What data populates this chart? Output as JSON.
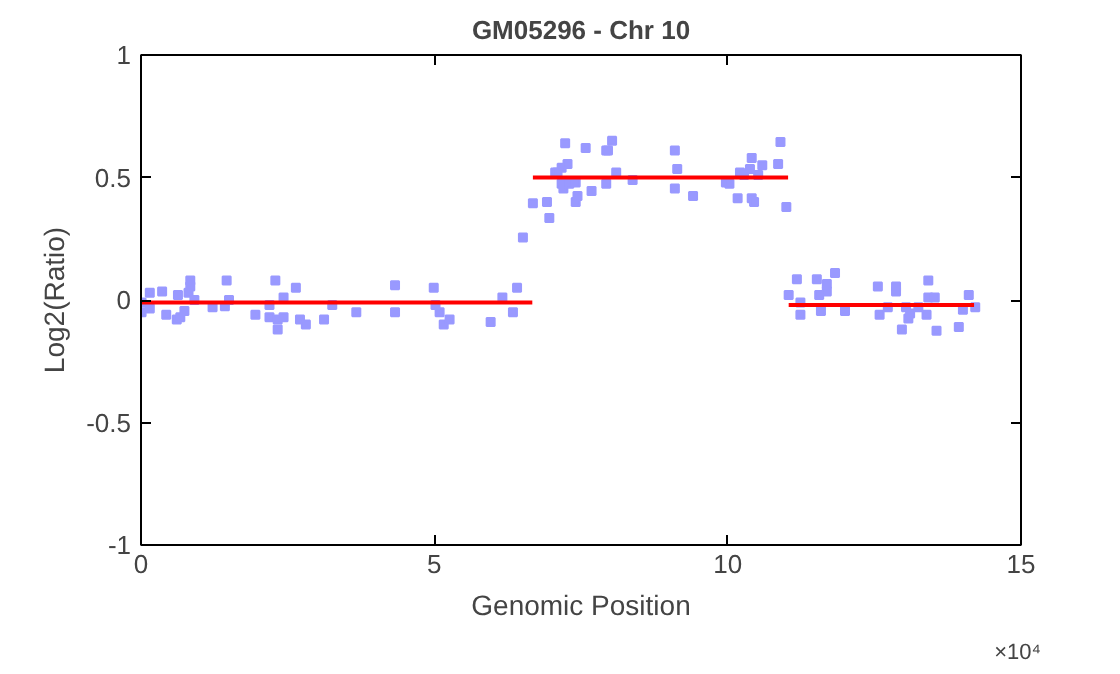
{
  "chart_data": {
    "type": "scatter",
    "title": "GM05296 - Chr 10",
    "xlabel": "Genomic Position",
    "ylabel": "Log2(Ratio)",
    "annotations": [
      "×10⁴"
    ],
    "xlim": [
      0,
      15
    ],
    "xticks": [
      0,
      5,
      10,
      15
    ],
    "ylim": [
      -1,
      1
    ],
    "yticks": [
      -1,
      -0.5,
      0,
      0.5,
      1
    ],
    "grid": false,
    "series": [
      {
        "marker": "square",
        "color": "#9999ff",
        "x": [
          0.01,
          0.01,
          0.15,
          0.15,
          0.36,
          0.43,
          0.61,
          0.63,
          0.67,
          0.74,
          0.81,
          0.84,
          0.84,
          0.91,
          1.22,
          1.43,
          1.46,
          1.5,
          1.95,
          2.19,
          2.19,
          2.29,
          2.33,
          2.33,
          2.43,
          2.43,
          2.64,
          2.71,
          2.81,
          3.12,
          3.26,
          3.67,
          4.33,
          4.33,
          4.99,
          5.02,
          5.09,
          5.16,
          5.26,
          5.96,
          6.16,
          6.34,
          6.41,
          6.51,
          6.68,
          6.92,
          6.96,
          7.06,
          7.1,
          7.17,
          7.17,
          7.2,
          7.23,
          7.27,
          7.3,
          7.41,
          7.41,
          7.44,
          7.58,
          7.68,
          7.93,
          7.96,
          7.93,
          8.03,
          8.1,
          8.38,
          9.1,
          9.14,
          9.1,
          9.41,
          9.97,
          10.03,
          10.17,
          10.21,
          10.28,
          10.38,
          10.41,
          10.41,
          10.45,
          10.52,
          10.59,
          10.86,
          10.9,
          11.0,
          11.04,
          11.18,
          11.24,
          11.24,
          11.52,
          11.56,
          11.59,
          11.69,
          11.69,
          11.83,
          12.0,
          12.56,
          12.59,
          12.73,
          12.87,
          12.87,
          12.97,
          13.04,
          13.08,
          13.11,
          13.25,
          13.39,
          13.42,
          13.42,
          13.53,
          13.56,
          13.94,
          14.01,
          14.11,
          14.22
        ],
        "values": [
          -0.01,
          -0.05,
          0.03,
          -0.035,
          0.035,
          -0.06,
          -0.08,
          0.02,
          -0.07,
          -0.045,
          0.03,
          0.08,
          0.055,
          0.0,
          -0.03,
          -0.025,
          0.08,
          0.0,
          -0.06,
          -0.02,
          -0.07,
          0.08,
          -0.12,
          -0.08,
          0.01,
          -0.07,
          0.05,
          -0.08,
          -0.1,
          -0.08,
          -0.02,
          -0.05,
          0.06,
          -0.05,
          0.05,
          -0.02,
          -0.05,
          -0.1,
          -0.08,
          -0.09,
          0.01,
          -0.05,
          0.05,
          0.255,
          0.395,
          0.4,
          0.335,
          0.52,
          0.52,
          0.54,
          0.475,
          0.455,
          0.64,
          0.555,
          0.475,
          0.48,
          0.4,
          0.425,
          0.62,
          0.445,
          0.61,
          0.61,
          0.475,
          0.65,
          0.52,
          0.49,
          0.61,
          0.535,
          0.455,
          0.425,
          0.48,
          0.475,
          0.415,
          0.52,
          0.51,
          0.535,
          0.58,
          0.415,
          0.4,
          0.51,
          0.55,
          0.555,
          0.645,
          0.38,
          0.02,
          0.085,
          -0.01,
          -0.06,
          0.085,
          0.02,
          -0.045,
          0.065,
          0.035,
          0.11,
          -0.045,
          0.055,
          -0.06,
          -0.03,
          0.055,
          0.035,
          -0.12,
          -0.03,
          -0.075,
          -0.055,
          -0.03,
          -0.06,
          0.08,
          0.01,
          0.01,
          -0.125,
          -0.11,
          -0.04,
          0.02,
          -0.03
        ]
      },
      {
        "type": "line",
        "color": "#ff0000",
        "x": [
          0,
          6.67
        ],
        "values": [
          -0.01,
          -0.01
        ]
      },
      {
        "type": "line",
        "color": "#ff0000",
        "x": [
          6.68,
          11.03
        ],
        "values": [
          0.5,
          0.5
        ]
      },
      {
        "type": "line",
        "color": "#ff0000",
        "x": [
          11.04,
          14.2
        ],
        "values": [
          -0.02,
          -0.02
        ]
      }
    ]
  }
}
